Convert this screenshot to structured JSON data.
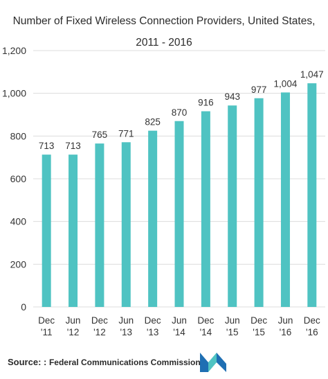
{
  "chart_data": {
    "type": "bar",
    "title": "Number of Fixed Wireless Connection Providers, United States,",
    "subtitle": "2011 - 2016",
    "categories": [
      [
        "Dec",
        "'11"
      ],
      [
        "Jun",
        "'12"
      ],
      [
        "Dec",
        "'12"
      ],
      [
        "Jun",
        "'13"
      ],
      [
        "Dec",
        "'13"
      ],
      [
        "Jun",
        "'14"
      ],
      [
        "Dec",
        "'14"
      ],
      [
        "Jun",
        "'15"
      ],
      [
        "Dec",
        "'15"
      ],
      [
        "Jun",
        "'16"
      ],
      [
        "Dec",
        "'16"
      ]
    ],
    "values": [
      713,
      713,
      765,
      771,
      825,
      870,
      916,
      943,
      977,
      1004,
      1047
    ],
    "value_labels": [
      "713",
      "713",
      "765",
      "771",
      "825",
      "870",
      "916",
      "943",
      "977",
      "1,004",
      "1,047"
    ],
    "ylim": [
      0,
      1200
    ],
    "yticks": [
      0,
      200,
      400,
      600,
      800,
      1000,
      1200
    ],
    "ytick_labels": [
      "0",
      "200",
      "400",
      "600",
      "800",
      "1,000",
      "1,200"
    ],
    "grid": true,
    "bar_color": "#4fc3c2",
    "grid_color": "#dcdcdc"
  },
  "source": {
    "label": "Source: :",
    "text": "Federal Communications Commission"
  },
  "logo": {
    "icon": "mordor-logo-icon",
    "colors": [
      "#1f6fb3",
      "#4fc3c2"
    ]
  }
}
